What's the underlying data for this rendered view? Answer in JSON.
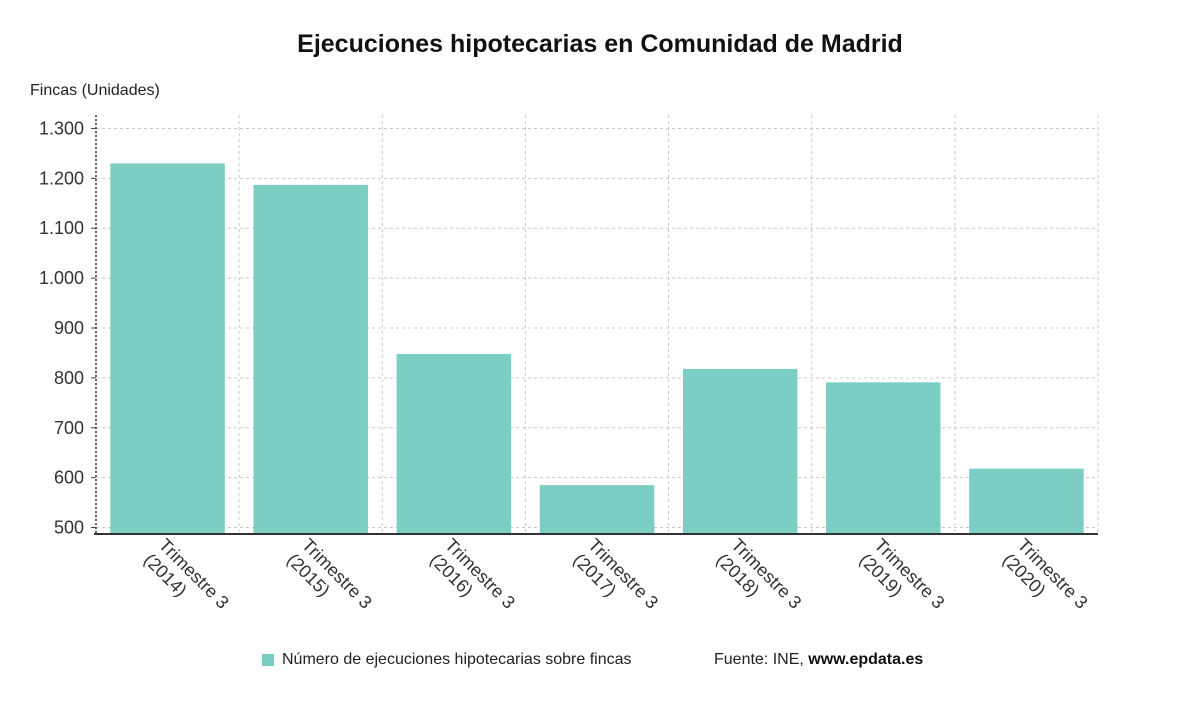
{
  "chart_data": {
    "type": "bar",
    "title": "Ejecuciones hipotecarias en Comunidad de Madrid",
    "ylabel": "Fincas (Unidades)",
    "xlabel": "",
    "categories": [
      [
        "Trimestre 3",
        "(2014)"
      ],
      [
        "Trimestre 3",
        "(2015)"
      ],
      [
        "Trimestre 3",
        "(2016)"
      ],
      [
        "Trimestre 3",
        "(2017)"
      ],
      [
        "Trimestre 3",
        "(2018)"
      ],
      [
        "Trimestre 3",
        "(2019)"
      ],
      [
        "Trimestre 3",
        "(2020)"
      ]
    ],
    "series": [
      {
        "name": "Número de ejecuciones hipotecarias sobre fincas",
        "values": [
          1230,
          1187,
          848,
          585,
          818,
          791,
          618
        ]
      }
    ],
    "ylim": [
      487,
      1327
    ],
    "yticks": [
      500,
      600,
      700,
      800,
      900,
      1000,
      1100,
      1200,
      1300
    ],
    "ytick_labels": [
      "500",
      "600",
      "700",
      "800",
      "900",
      "1.000",
      "1.100",
      "1.200",
      "1.300"
    ],
    "grid": true,
    "legend_position": "bottom",
    "bar_color": "#7ccdc4"
  },
  "footer": {
    "source_prefix": "Fuente: INE, ",
    "source_site": "www.epdata.es"
  }
}
